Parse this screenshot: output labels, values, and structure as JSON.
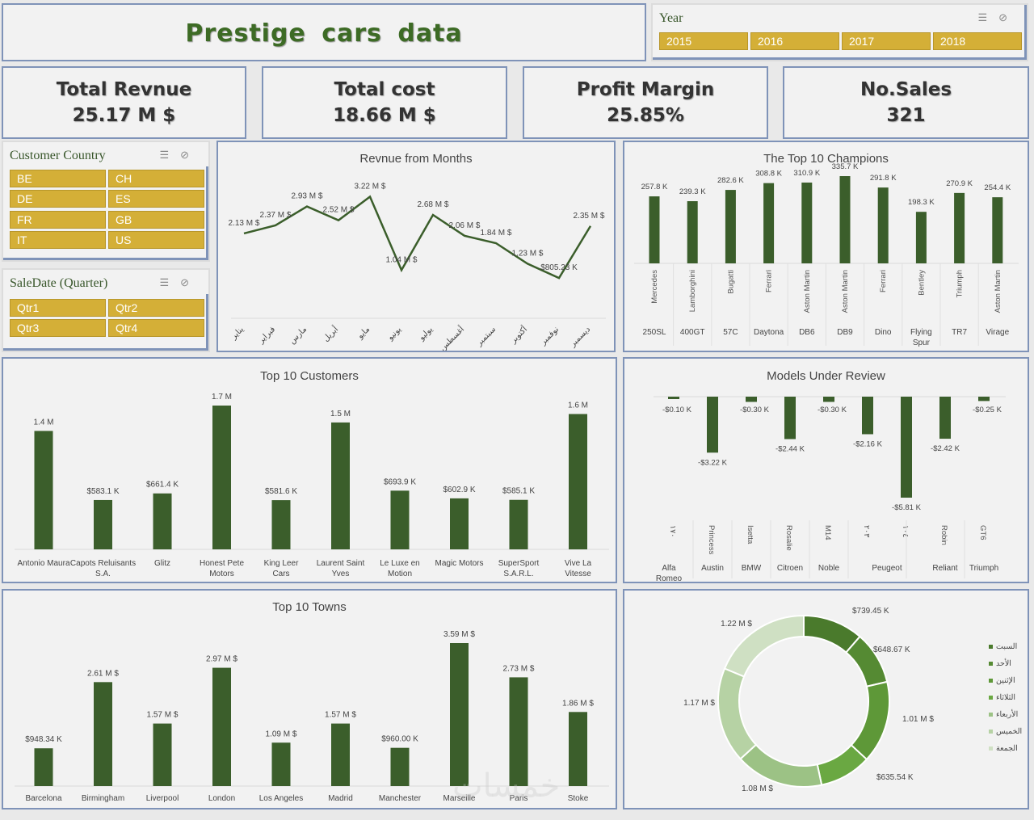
{
  "header": {
    "title": "Prestige  cars  data"
  },
  "year_slicer": {
    "title": "Year",
    "options": [
      "2015",
      "2016",
      "2017",
      "2018"
    ]
  },
  "kpis": [
    {
      "label": "Total Revnue",
      "value": "25.17 M $"
    },
    {
      "label": "Total cost",
      "value": "18.66 M $"
    },
    {
      "label": "Profit Margin",
      "value": "25.85%"
    },
    {
      "label": "No.Sales",
      "value": "321"
    }
  ],
  "country_slicer": {
    "title": "Customer Country",
    "options": [
      "BE",
      "CH",
      "DE",
      "ES",
      "FR",
      "GB",
      "IT",
      "US"
    ]
  },
  "quarter_slicer": {
    "title": "SaleDate (Quarter)",
    "options": [
      "Qtr1",
      "Qtr2",
      "Qtr3",
      "Qtr4"
    ]
  },
  "watermark": "خمسات",
  "chart_data": [
    {
      "id": "months",
      "type": "line",
      "title": "Revnue from Months",
      "categories": [
        "يناير",
        "فبراير",
        "مارس",
        "أبريل",
        "مايو",
        "يونيو",
        "يوليو",
        "أغسطس",
        "سبتمبر",
        "أكتوبر",
        "نوفمبر",
        "ديسمبر"
      ],
      "values": [
        2.13,
        2.37,
        2.93,
        2.52,
        3.22,
        1.04,
        2.68,
        2.06,
        1.84,
        1.23,
        0.805,
        2.35
      ],
      "labels": [
        "2.13 M $",
        "2.37 M $",
        "2.93 M $",
        "2.52 M $",
        "3.22 M $",
        "1.04 M $",
        "2.68 M $",
        "2.06 M $",
        "1.84 M $",
        "1.23 M $",
        "$805.23 K",
        "2.35 M $"
      ],
      "color": "#3b5e2b"
    },
    {
      "id": "champions",
      "type": "bar",
      "title": "The Top 10 Champions",
      "makes": [
        "Mercedes",
        "Lamborghini",
        "Bugatti",
        "Ferrari",
        "Aston Martin",
        "Aston Martin",
        "Ferrari",
        "Bentley",
        "Triumph",
        "Aston Martin"
      ],
      "categories": [
        "250SL",
        "400GT",
        "57C",
        "Daytona",
        "DB6",
        "DB9",
        "Dino",
        "Flying Spur",
        "TR7",
        "Virage"
      ],
      "values": [
        257.8,
        239.3,
        282.6,
        308.8,
        310.9,
        335.7,
        291.8,
        198.3,
        270.9,
        254.4
      ],
      "labels": [
        "257.8 K",
        "239.3 K",
        "282.6 K",
        "308.8 K",
        "310.9 K",
        "335.7 K",
        "291.8 K",
        "198.3 K",
        "270.9 K",
        "254.4 K"
      ],
      "color": "#3b5e2b"
    },
    {
      "id": "customers",
      "type": "bar",
      "title": "Top 10 Customers",
      "categories": [
        "Antonio Maura",
        "Capots Reluisants S.A.",
        "Glitz",
        "Honest Pete Motors",
        "King Leer Cars",
        "Laurent Saint Yves",
        "Le Luxe en Motion",
        "Magic Motors",
        "SuperSport S.A.R.L.",
        "Vive La Vitesse"
      ],
      "values": [
        1400,
        583.1,
        661.4,
        1700,
        581.6,
        1500,
        693.9,
        602.9,
        585.1,
        1600
      ],
      "labels": [
        "1.4 M",
        "$583.1 K",
        "$661.4 K",
        "1.7 M",
        "$581.6 K",
        "1.5 M",
        "$693.9 K",
        "$602.9 K",
        "$585.1 K",
        "1.6 M"
      ],
      "unit": "K $",
      "color": "#3b5e2b"
    },
    {
      "id": "review",
      "type": "bar",
      "title": "Models Under Review",
      "groups": [
        "Alfa Romeo",
        "Austin",
        "BMW",
        "Citroen",
        "Noble",
        "Peugeot",
        "Reliant",
        "Triumph"
      ],
      "models": [
        "۱۷۰",
        "Princess",
        "Isetta",
        "Rosalie",
        "M14",
        "۲۰۳",
        "۱۰٤",
        "Robin",
        "GT6"
      ],
      "model_group": [
        0,
        1,
        2,
        3,
        4,
        5,
        5,
        6,
        7
      ],
      "values": [
        -0.1,
        -3.22,
        -0.3,
        -2.44,
        -0.3,
        -2.16,
        -5.81,
        -2.42,
        -0.25
      ],
      "labels": [
        "-$0.10 K",
        "-$3.22 K",
        "-$0.30 K",
        "-$2.44 K",
        "-$0.30 K",
        "-$2.16 K",
        "-$5.81 K",
        "-$2.42 K",
        "-$0.25 K"
      ],
      "color": "#3b5e2b"
    },
    {
      "id": "towns",
      "type": "bar",
      "title": "Top 10 Towns",
      "categories": [
        "Barcelona",
        "Birmingham",
        "Liverpool",
        "London",
        "Los Angeles",
        "Madrid",
        "Manchester",
        "Marseille",
        "Paris",
        "Stoke"
      ],
      "values": [
        0.94834,
        2.61,
        1.57,
        2.97,
        1.09,
        1.57,
        0.96,
        3.59,
        2.73,
        1.86
      ],
      "labels": [
        "$948.34 K",
        "2.61 M $",
        "1.57 M $",
        "2.97 M $",
        "1.09 M $",
        "1.57 M $",
        "$960.00 K",
        "3.59 M $",
        "2.73 M $",
        "1.86 M $"
      ],
      "color": "#3b5e2b"
    },
    {
      "id": "weekday",
      "type": "pie",
      "title": "",
      "categories": [
        "السبت",
        "الأحد",
        "الإثنين",
        "الثلاثاء",
        "الأربعاء",
        "الخميس",
        "الجمعة"
      ],
      "values": [
        0.73945,
        0.64867,
        1.01,
        0.63554,
        1.08,
        1.17,
        1.22
      ],
      "labels": [
        "$739.45 K",
        "$648.67 K",
        "1.01 M $",
        "$635.54 K",
        "1.08 M $",
        "1.17 M $",
        "1.22 M $"
      ],
      "colors": [
        "#4a7a2c",
        "#558a33",
        "#5e9838",
        "#6aa842",
        "#9cc285",
        "#b6d2a4",
        "#cfe0c3"
      ]
    }
  ]
}
